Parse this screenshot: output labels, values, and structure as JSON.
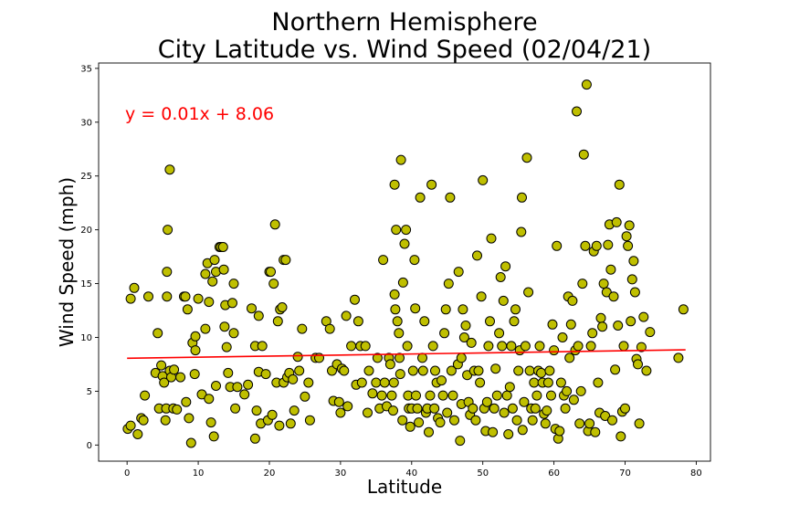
{
  "chart_data": {
    "type": "scatter",
    "title_line1": "Northern Hemisphere",
    "title_line2": "City Latitude vs. Wind Speed (02/04/21)",
    "xlabel": "Latitude",
    "ylabel": "Wind Speed (mph)",
    "xlim": [
      -4,
      82
    ],
    "ylim": [
      -1.5,
      35.5
    ],
    "xticks": [
      0,
      10,
      20,
      30,
      40,
      50,
      60,
      70,
      80
    ],
    "yticks": [
      0,
      5,
      10,
      15,
      20,
      25,
      30,
      35
    ],
    "grid": false,
    "regression": {
      "equation": "y = 0.01x + 8.06",
      "slope": 0.01,
      "intercept": 8.06,
      "color": "#ff0000"
    },
    "marker": {
      "fill": "#bfbf00",
      "edge": "#000000"
    },
    "points": [
      [
        0.1,
        1.5
      ],
      [
        0.5,
        1.8
      ],
      [
        1.5,
        1.0
      ],
      [
        2.0,
        2.5
      ],
      [
        2.3,
        2.3
      ],
      [
        2.5,
        4.6
      ],
      [
        0.5,
        13.6
      ],
      [
        1.0,
        14.6
      ],
      [
        3.0,
        13.8
      ],
      [
        4.0,
        6.7
      ],
      [
        4.3,
        10.4
      ],
      [
        4.5,
        3.4
      ],
      [
        4.8,
        7.4
      ],
      [
        5.0,
        6.4
      ],
      [
        5.2,
        5.8
      ],
      [
        5.4,
        2.3
      ],
      [
        5.5,
        3.4
      ],
      [
        5.6,
        13.8
      ],
      [
        5.6,
        16.1
      ],
      [
        5.7,
        20.0
      ],
      [
        6.0,
        25.6
      ],
      [
        6.0,
        6.9
      ],
      [
        6.2,
        6.3
      ],
      [
        6.5,
        3.4
      ],
      [
        6.6,
        7.0
      ],
      [
        7.0,
        3.3
      ],
      [
        7.5,
        6.3
      ],
      [
        8.0,
        13.8
      ],
      [
        8.2,
        13.8
      ],
      [
        8.5,
        12.6
      ],
      [
        8.3,
        4.0
      ],
      [
        8.7,
        2.5
      ],
      [
        9.0,
        0.2
      ],
      [
        9.2,
        9.5
      ],
      [
        9.5,
        6.6
      ],
      [
        9.6,
        8.8
      ],
      [
        9.6,
        10.1
      ],
      [
        10.0,
        13.6
      ],
      [
        10.5,
        4.7
      ],
      [
        11.0,
        10.8
      ],
      [
        11.0,
        15.9
      ],
      [
        11.3,
        16.9
      ],
      [
        11.5,
        4.3
      ],
      [
        11.5,
        13.3
      ],
      [
        11.8,
        2.1
      ],
      [
        12.0,
        15.2
      ],
      [
        12.2,
        0.8
      ],
      [
        12.3,
        17.2
      ],
      [
        12.5,
        16.1
      ],
      [
        12.5,
        5.5
      ],
      [
        13.0,
        18.4
      ],
      [
        13.2,
        18.4
      ],
      [
        13.5,
        18.4
      ],
      [
        13.6,
        16.3
      ],
      [
        13.7,
        11.0
      ],
      [
        13.8,
        13.0
      ],
      [
        14.0,
        9.1
      ],
      [
        14.2,
        6.7
      ],
      [
        14.5,
        5.4
      ],
      [
        14.8,
        13.2
      ],
      [
        15.0,
        10.4
      ],
      [
        15.0,
        15.0
      ],
      [
        15.2,
        3.4
      ],
      [
        15.5,
        5.4
      ],
      [
        16.5,
        4.7
      ],
      [
        17.0,
        5.6
      ],
      [
        17.5,
        12.7
      ],
      [
        18.0,
        9.2
      ],
      [
        18.0,
        0.6
      ],
      [
        18.2,
        3.2
      ],
      [
        18.5,
        6.8
      ],
      [
        18.5,
        12.0
      ],
      [
        18.8,
        2.0
      ],
      [
        19.0,
        9.2
      ],
      [
        19.5,
        6.6
      ],
      [
        19.8,
        2.3
      ],
      [
        20.0,
        16.1
      ],
      [
        20.2,
        16.1
      ],
      [
        20.4,
        2.8
      ],
      [
        20.6,
        15.0
      ],
      [
        20.8,
        20.5
      ],
      [
        21.0,
        5.8
      ],
      [
        21.2,
        11.5
      ],
      [
        21.4,
        1.8
      ],
      [
        21.5,
        12.6
      ],
      [
        21.8,
        12.8
      ],
      [
        22.0,
        5.8
      ],
      [
        22.0,
        17.2
      ],
      [
        22.3,
        17.2
      ],
      [
        22.5,
        6.3
      ],
      [
        22.8,
        6.7
      ],
      [
        23.0,
        2.0
      ],
      [
        23.3,
        6.1
      ],
      [
        23.5,
        3.2
      ],
      [
        24.0,
        8.2
      ],
      [
        24.2,
        6.9
      ],
      [
        24.6,
        10.8
      ],
      [
        25.0,
        4.5
      ],
      [
        25.5,
        5.8
      ],
      [
        25.7,
        2.3
      ],
      [
        26.5,
        8.1
      ],
      [
        27.0,
        8.1
      ],
      [
        28.0,
        11.5
      ],
      [
        28.5,
        10.8
      ],
      [
        28.8,
        6.9
      ],
      [
        29.0,
        4.1
      ],
      [
        29.5,
        7.5
      ],
      [
        29.8,
        4.0
      ],
      [
        30.0,
        3.0
      ],
      [
        30.2,
        7.1
      ],
      [
        30.5,
        6.9
      ],
      [
        30.8,
        12.0
      ],
      [
        31.0,
        3.6
      ],
      [
        31.5,
        9.2
      ],
      [
        32.0,
        13.5
      ],
      [
        32.2,
        5.6
      ],
      [
        32.5,
        11.5
      ],
      [
        32.8,
        9.2
      ],
      [
        33.0,
        5.8
      ],
      [
        33.5,
        9.2
      ],
      [
        33.8,
        3.0
      ],
      [
        34.0,
        6.9
      ],
      [
        34.5,
        4.8
      ],
      [
        35.0,
        5.8
      ],
      [
        35.2,
        8.1
      ],
      [
        35.5,
        3.4
      ],
      [
        35.8,
        4.6
      ],
      [
        36.0,
        17.2
      ],
      [
        36.2,
        5.8
      ],
      [
        36.5,
        3.6
      ],
      [
        36.8,
        8.1
      ],
      [
        37.0,
        7.5
      ],
      [
        37.2,
        4.6
      ],
      [
        37.4,
        3.2
      ],
      [
        37.5,
        5.8
      ],
      [
        37.6,
        24.2
      ],
      [
        37.6,
        14.0
      ],
      [
        37.7,
        12.6
      ],
      [
        37.8,
        20.0
      ],
      [
        38.0,
        11.5
      ],
      [
        38.2,
        10.4
      ],
      [
        38.3,
        8.1
      ],
      [
        38.4,
        6.6
      ],
      [
        38.5,
        26.5
      ],
      [
        38.7,
        2.3
      ],
      [
        38.8,
        15.1
      ],
      [
        39.0,
        18.7
      ],
      [
        39.2,
        20.0
      ],
      [
        39.4,
        9.2
      ],
      [
        39.5,
        4.6
      ],
      [
        39.6,
        3.4
      ],
      [
        39.8,
        1.7
      ],
      [
        40.0,
        3.4
      ],
      [
        40.2,
        6.9
      ],
      [
        40.4,
        17.2
      ],
      [
        40.5,
        12.7
      ],
      [
        40.6,
        4.6
      ],
      [
        40.8,
        3.4
      ],
      [
        41.0,
        2.1
      ],
      [
        41.2,
        23.0
      ],
      [
        41.5,
        8.1
      ],
      [
        41.6,
        6.9
      ],
      [
        41.8,
        11.5
      ],
      [
        42.0,
        3.0
      ],
      [
        42.2,
        3.4
      ],
      [
        42.4,
        1.2
      ],
      [
        42.6,
        4.6
      ],
      [
        42.8,
        24.2
      ],
      [
        43.0,
        9.2
      ],
      [
        43.2,
        3.4
      ],
      [
        43.3,
        6.9
      ],
      [
        43.5,
        5.8
      ],
      [
        43.7,
        2.5
      ],
      [
        44.0,
        2.1
      ],
      [
        44.2,
        6.0
      ],
      [
        44.4,
        4.6
      ],
      [
        44.6,
        10.4
      ],
      [
        44.8,
        12.6
      ],
      [
        45.0,
        3.0
      ],
      [
        45.2,
        15.0
      ],
      [
        45.4,
        23.0
      ],
      [
        45.6,
        6.9
      ],
      [
        45.8,
        4.6
      ],
      [
        46.0,
        2.3
      ],
      [
        46.5,
        7.5
      ],
      [
        46.6,
        16.1
      ],
      [
        46.8,
        0.4
      ],
      [
        47.0,
        3.8
      ],
      [
        47.0,
        8.1
      ],
      [
        47.2,
        12.6
      ],
      [
        47.4,
        10.0
      ],
      [
        47.6,
        11.1
      ],
      [
        47.8,
        6.5
      ],
      [
        48.0,
        4.0
      ],
      [
        48.2,
        2.8
      ],
      [
        48.4,
        9.5
      ],
      [
        48.6,
        3.4
      ],
      [
        48.8,
        6.9
      ],
      [
        49.0,
        2.3
      ],
      [
        49.2,
        17.6
      ],
      [
        49.4,
        6.9
      ],
      [
        49.6,
        5.8
      ],
      [
        49.8,
        13.8
      ],
      [
        50.0,
        24.6
      ],
      [
        50.2,
        3.4
      ],
      [
        50.4,
        1.3
      ],
      [
        50.6,
        4.0
      ],
      [
        50.8,
        9.2
      ],
      [
        51.0,
        11.5
      ],
      [
        51.2,
        19.2
      ],
      [
        51.4,
        1.2
      ],
      [
        51.6,
        3.4
      ],
      [
        51.8,
        7.1
      ],
      [
        52.0,
        4.6
      ],
      [
        52.3,
        10.4
      ],
      [
        52.5,
        15.6
      ],
      [
        52.7,
        9.2
      ],
      [
        52.9,
        13.4
      ],
      [
        53.0,
        3.0
      ],
      [
        53.2,
        16.6
      ],
      [
        53.4,
        4.6
      ],
      [
        53.6,
        1.0
      ],
      [
        53.8,
        5.4
      ],
      [
        54.0,
        9.2
      ],
      [
        54.2,
        3.4
      ],
      [
        54.4,
        11.5
      ],
      [
        54.6,
        12.6
      ],
      [
        54.8,
        2.3
      ],
      [
        55.0,
        6.9
      ],
      [
        55.2,
        8.8
      ],
      [
        55.4,
        19.8
      ],
      [
        55.5,
        23.0
      ],
      [
        55.6,
        1.4
      ],
      [
        55.8,
        4.0
      ],
      [
        56.0,
        9.2
      ],
      [
        56.2,
        26.7
      ],
      [
        56.4,
        14.2
      ],
      [
        56.6,
        6.9
      ],
      [
        56.8,
        3.4
      ],
      [
        57.0,
        2.3
      ],
      [
        57.2,
        5.8
      ],
      [
        57.4,
        3.4
      ],
      [
        57.6,
        4.6
      ],
      [
        57.8,
        6.9
      ],
      [
        58.0,
        9.2
      ],
      [
        58.2,
        6.7
      ],
      [
        58.4,
        5.8
      ],
      [
        58.6,
        2.9
      ],
      [
        58.8,
        2.0
      ],
      [
        59.0,
        3.2
      ],
      [
        59.2,
        5.8
      ],
      [
        59.4,
        6.9
      ],
      [
        59.6,
        4.6
      ],
      [
        59.8,
        11.2
      ],
      [
        60.0,
        8.8
      ],
      [
        60.2,
        1.5
      ],
      [
        60.4,
        18.5
      ],
      [
        60.6,
        0.6
      ],
      [
        60.8,
        1.3
      ],
      [
        61.0,
        5.8
      ],
      [
        61.2,
        10.0
      ],
      [
        61.4,
        4.6
      ],
      [
        61.6,
        3.4
      ],
      [
        61.8,
        5.0
      ],
      [
        62.0,
        13.8
      ],
      [
        62.2,
        8.1
      ],
      [
        62.4,
        11.2
      ],
      [
        62.6,
        13.4
      ],
      [
        62.8,
        4.2
      ],
      [
        63.0,
        8.8
      ],
      [
        63.2,
        31.0
      ],
      [
        63.4,
        9.2
      ],
      [
        63.6,
        2.0
      ],
      [
        63.8,
        5.0
      ],
      [
        64.0,
        15.0
      ],
      [
        64.2,
        27.0
      ],
      [
        64.4,
        18.5
      ],
      [
        64.6,
        33.5
      ],
      [
        64.8,
        1.3
      ],
      [
        65.0,
        2.0
      ],
      [
        65.2,
        9.2
      ],
      [
        65.4,
        10.4
      ],
      [
        65.6,
        18.0
      ],
      [
        65.8,
        1.2
      ],
      [
        66.0,
        18.5
      ],
      [
        66.2,
        5.8
      ],
      [
        66.4,
        3.0
      ],
      [
        66.6,
        11.8
      ],
      [
        66.8,
        11.0
      ],
      [
        67.0,
        15.0
      ],
      [
        67.2,
        2.7
      ],
      [
        67.4,
        14.2
      ],
      [
        67.6,
        18.6
      ],
      [
        67.8,
        20.5
      ],
      [
        68.0,
        16.3
      ],
      [
        68.2,
        2.3
      ],
      [
        68.4,
        13.8
      ],
      [
        68.6,
        7.0
      ],
      [
        68.8,
        20.7
      ],
      [
        69.0,
        11.1
      ],
      [
        69.2,
        24.2
      ],
      [
        69.4,
        0.8
      ],
      [
        69.6,
        3.1
      ],
      [
        69.8,
        9.2
      ],
      [
        70.0,
        3.4
      ],
      [
        70.2,
        19.4
      ],
      [
        70.4,
        18.5
      ],
      [
        70.6,
        20.4
      ],
      [
        70.8,
        11.5
      ],
      [
        71.0,
        15.4
      ],
      [
        71.2,
        17.1
      ],
      [
        71.4,
        14.2
      ],
      [
        71.6,
        8.0
      ],
      [
        71.8,
        7.5
      ],
      [
        72.0,
        2.0
      ],
      [
        72.3,
        9.1
      ],
      [
        72.6,
        11.9
      ],
      [
        73.0,
        6.9
      ],
      [
        73.5,
        10.5
      ],
      [
        77.5,
        8.1
      ],
      [
        78.2,
        12.6
      ]
    ]
  }
}
